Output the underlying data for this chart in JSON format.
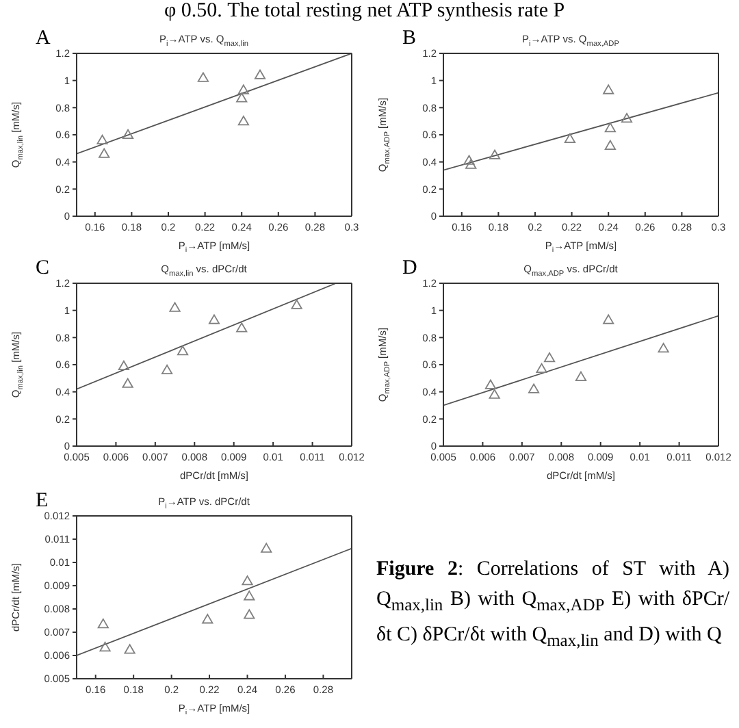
{
  "chart_data": [
    {
      "type": "scatter",
      "title": "P$_{i}$→ATP vs. Q$_{max,lin}$",
      "xlabel": "P$_{i}$→ATP [mM/s]",
      "ylabel": "Q$_{max,lin}$ [mM/s]",
      "annotations": [
        "A"
      ],
      "xlim": [
        0.15,
        0.3
      ],
      "xticks": [
        0.16,
        0.18,
        0.2,
        0.22,
        0.24,
        0.26,
        0.28,
        0.3
      ],
      "ylim": [
        0,
        1.2
      ],
      "yticks": [
        0,
        0.2,
        0.4,
        0.6,
        0.8,
        1,
        1.2
      ],
      "grid": false,
      "legend": false,
      "series": [
        {
          "type": "scatter",
          "marker": "triangle",
          "color": "#808080",
          "x": [
            0.164,
            0.165,
            0.178,
            0.219,
            0.24,
            0.241,
            0.241,
            0.25
          ],
          "values": [
            0.56,
            0.46,
            0.6,
            1.02,
            0.87,
            0.93,
            0.7,
            1.04
          ]
        },
        {
          "type": "line",
          "marker": "none",
          "color": "#555555",
          "x": [
            0.15,
            0.3
          ],
          "values": [
            0.46,
            1.2
          ]
        }
      ]
    },
    {
      "type": "scatter",
      "title": "P$_{i}$→ATP vs. Q$_{max,ADP}$",
      "xlabel": "P$_{i}$→ATP [mM/s]",
      "ylabel": "Q$_{max,ADP}$ [mM/s]",
      "annotations": [
        "B"
      ],
      "xlim": [
        0.15,
        0.3
      ],
      "xticks": [
        0.16,
        0.18,
        0.2,
        0.22,
        0.24,
        0.26,
        0.28,
        0.3
      ],
      "ylim": [
        0,
        1.2
      ],
      "yticks": [
        0,
        0.2,
        0.4,
        0.6,
        0.8,
        1,
        1.2
      ],
      "grid": false,
      "legend": false,
      "series": [
        {
          "type": "scatter",
          "marker": "triangle",
          "color": "#808080",
          "x": [
            0.164,
            0.165,
            0.178,
            0.219,
            0.24,
            0.241,
            0.241,
            0.25
          ],
          "values": [
            0.41,
            0.38,
            0.45,
            0.57,
            0.93,
            0.65,
            0.52,
            0.72
          ]
        },
        {
          "type": "line",
          "marker": "none",
          "color": "#555555",
          "x": [
            0.15,
            0.3
          ],
          "values": [
            0.34,
            0.91
          ]
        }
      ]
    },
    {
      "type": "scatter",
      "title": "Q$_{max,lin}$ vs. dPCr/dt",
      "xlabel": "dPCr/dt [mM/s]",
      "ylabel": "Q$_{max,lin}$ [mM/s]",
      "annotations": [
        "C"
      ],
      "xlim": [
        0.005,
        0.012
      ],
      "xticks": [
        0.005,
        0.006,
        0.007,
        0.008,
        0.009,
        0.01,
        0.011,
        0.012
      ],
      "ylim": [
        0,
        1.2
      ],
      "yticks": [
        0,
        0.2,
        0.4,
        0.6,
        0.8,
        1,
        1.2
      ],
      "grid": false,
      "legend": false,
      "series": [
        {
          "type": "scatter",
          "marker": "triangle",
          "color": "#808080",
          "x": [
            0.0062,
            0.0063,
            0.0073,
            0.0075,
            0.0077,
            0.0085,
            0.0092,
            0.0106
          ],
          "values": [
            0.59,
            0.46,
            0.56,
            1.02,
            0.7,
            0.93,
            0.87,
            1.04
          ]
        },
        {
          "type": "line",
          "marker": "none",
          "color": "#555555",
          "x": [
            0.005,
            0.0116
          ],
          "values": [
            0.42,
            1.2
          ]
        }
      ]
    },
    {
      "type": "scatter",
      "title": "Q$_{max,ADP}$ vs. dPCr/dt",
      "xlabel": "dPCr/dt [mM/s]",
      "ylabel": "Q$_{max,ADP}$ [mM/s]",
      "annotations": [
        "D"
      ],
      "xlim": [
        0.005,
        0.012
      ],
      "xticks": [
        0.005,
        0.006,
        0.007,
        0.008,
        0.009,
        0.01,
        0.011,
        0.012
      ],
      "ylim": [
        0,
        1.2
      ],
      "yticks": [
        0,
        0.2,
        0.4,
        0.6,
        0.8,
        1,
        1.2
      ],
      "grid": false,
      "legend": false,
      "series": [
        {
          "type": "scatter",
          "marker": "triangle",
          "color": "#808080",
          "x": [
            0.0062,
            0.0063,
            0.0073,
            0.0075,
            0.0077,
            0.0085,
            0.0092,
            0.0106
          ],
          "values": [
            0.45,
            0.38,
            0.42,
            0.57,
            0.65,
            0.51,
            0.93,
            0.72
          ]
        },
        {
          "type": "line",
          "marker": "none",
          "color": "#555555",
          "x": [
            0.005,
            0.012
          ],
          "values": [
            0.3,
            0.96
          ]
        }
      ]
    },
    {
      "type": "scatter",
      "title": "P$_{i}$→ATP vs. dPCr/dt",
      "xlabel": "P$_{i}$→ATP [mM/s]",
      "ylabel": "dPCr/dt [mM/s]",
      "annotations": [
        "E"
      ],
      "xlim": [
        0.15,
        0.295
      ],
      "xticks": [
        0.16,
        0.18,
        0.2,
        0.22,
        0.24,
        0.26,
        0.28
      ],
      "ylim": [
        0.005,
        0.012
      ],
      "yticks": [
        0.005,
        0.006,
        0.007,
        0.008,
        0.009,
        0.01,
        0.011,
        0.012
      ],
      "grid": false,
      "legend": false,
      "series": [
        {
          "type": "scatter",
          "marker": "triangle",
          "color": "#808080",
          "x": [
            0.164,
            0.165,
            0.178,
            0.219,
            0.24,
            0.241,
            0.241,
            0.25
          ],
          "values": [
            0.00735,
            0.00635,
            0.00625,
            0.00755,
            0.0092,
            0.00855,
            0.00775,
            0.0106
          ]
        },
        {
          "type": "line",
          "marker": "none",
          "color": "#555555",
          "x": [
            0.15,
            0.295
          ],
          "values": [
            0.006,
            0.0106
          ]
        }
      ]
    },
    {
      "type": "other",
      "title": "Figure 2",
      "annotations": [
        ": Correlations of ST with A) Q$_{max,lin}$ B) with Q$_{max,ADP}$ E) with δPCr/δt C) δPCr/δt with Q$_{max,lin}$ and D) with Q",
        "φ 0.50. The total resting net ATP synthesis rate P"
      ]
    }
  ]
}
